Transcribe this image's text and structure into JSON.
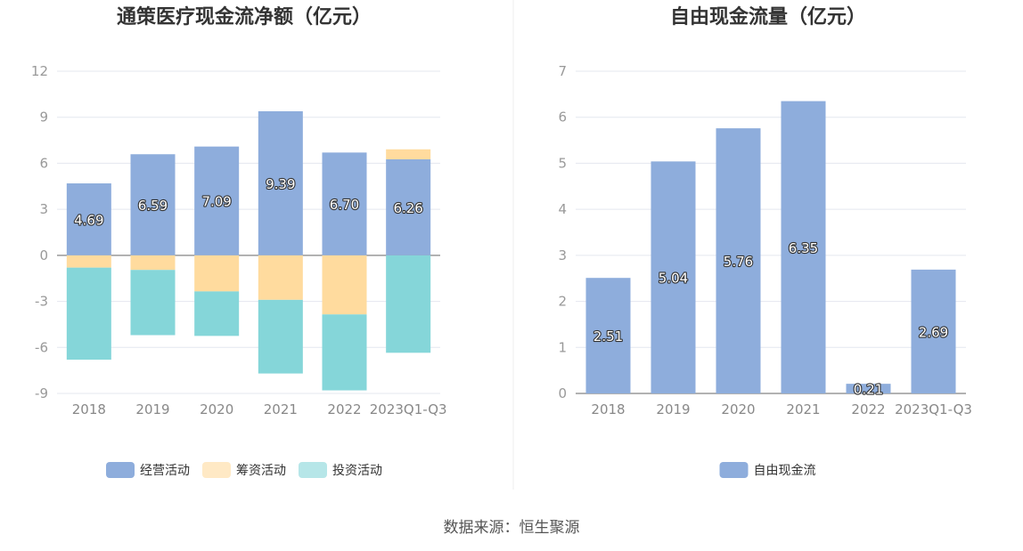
{
  "source": "数据来源：恒生聚源",
  "colors": {
    "operating": "#8eaddc",
    "financing": "#ffdb9e",
    "investing": "#85d6d9",
    "axis": "#999999",
    "grid": "#e4e7ef"
  },
  "chart_data": [
    {
      "type": "bar",
      "stacked": true,
      "title": "通策医疗现金流净额（亿元）",
      "categories": [
        "2018",
        "2019",
        "2020",
        "2021",
        "2022",
        "2023Q1-Q3"
      ],
      "yticks": [
        "12",
        "9",
        "6",
        "3",
        "0",
        "-3",
        "-6",
        "-9"
      ],
      "ylim": [
        -9,
        12
      ],
      "series": [
        {
          "name": "经营活动",
          "color_key": "operating",
          "values": [
            4.69,
            6.59,
            7.09,
            9.39,
            6.7,
            6.26
          ],
          "labels": [
            "4.69",
            "6.59",
            "7.09",
            "9.39",
            "6.70",
            "6.26"
          ]
        },
        {
          "name": "筹资活动",
          "color_key": "financing",
          "values": [
            -0.8,
            -0.95,
            -2.35,
            -2.9,
            -3.85,
            0.65
          ]
        },
        {
          "name": "投资活动",
          "color_key": "investing",
          "values": [
            -6.0,
            -4.25,
            -2.9,
            -4.8,
            -4.95,
            -6.35
          ]
        }
      ],
      "legend": [
        "经营活动",
        "筹资活动",
        "投资活动"
      ],
      "legend_position": "bottom"
    },
    {
      "type": "bar",
      "title": "自由现金流量（亿元）",
      "categories": [
        "2018",
        "2019",
        "2020",
        "2021",
        "2022",
        "2023Q1-Q3"
      ],
      "yticks": [
        "7",
        "6",
        "5",
        "4",
        "3",
        "2",
        "1",
        "0"
      ],
      "ylim": [
        0,
        7
      ],
      "series": [
        {
          "name": "自由现金流",
          "color_key": "operating",
          "values": [
            2.51,
            5.04,
            5.76,
            6.35,
            0.21,
            2.69
          ],
          "labels": [
            "2.51",
            "5.04",
            "5.76",
            "6.35",
            "0.21",
            "2.69"
          ]
        }
      ],
      "legend": [
        "自由现金流"
      ],
      "legend_position": "bottom"
    }
  ]
}
